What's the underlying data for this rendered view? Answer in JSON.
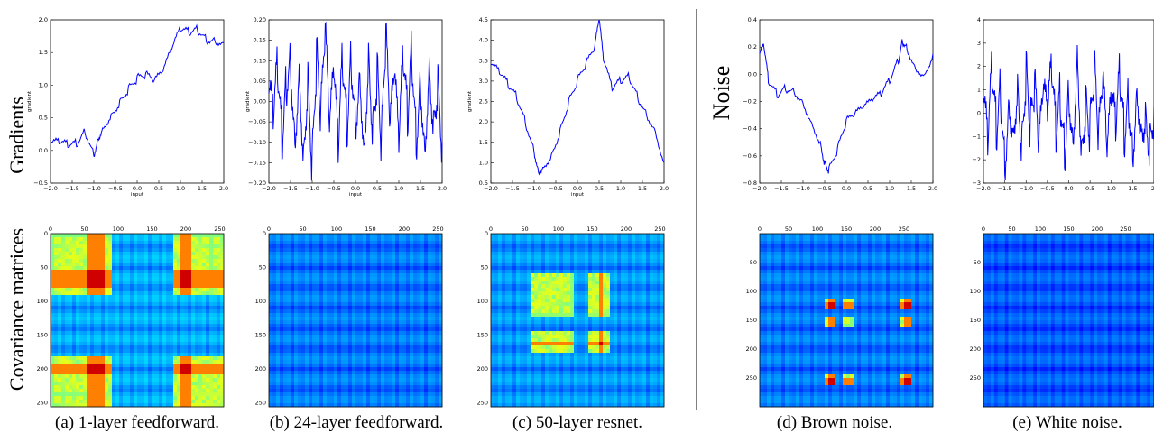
{
  "row_labels": {
    "gradients": "Gradients",
    "covariance": "Covariance matrices",
    "noise": "Noise"
  },
  "captions": [
    "(a) 1-layer feedforward.",
    "(b) 24-layer feedforward.",
    "(c) 50-layer resnet.",
    "(d) Brown noise.",
    "(e) White noise."
  ],
  "chart_data": [
    {
      "type": "line",
      "id": "a-line",
      "xlabel": "input",
      "ylabel": "gradient",
      "xlim": [
        -2.0,
        2.0
      ],
      "ylim": [
        -0.5,
        2.0
      ],
      "xticks": [
        "−2.0",
        "−1.5",
        "−1.0",
        "−0.5",
        "0.0",
        "0.5",
        "1.0",
        "1.5",
        "2.0"
      ],
      "yticks": [
        "−0.5",
        "0.0",
        "0.5",
        "1.0",
        "1.5",
        "2.0"
      ],
      "x": [
        -2.0,
        -1.8,
        -1.6,
        -1.4,
        -1.2,
        -1.0,
        -0.9,
        -0.8,
        -0.6,
        -0.4,
        -0.2,
        0.0,
        0.2,
        0.4,
        0.6,
        0.8,
        1.0,
        1.2,
        1.4,
        1.6,
        1.8,
        2.0
      ],
      "y": [
        0.1,
        0.12,
        0.08,
        0.1,
        0.3,
        -0.05,
        0.2,
        0.35,
        0.55,
        0.75,
        0.95,
        1.1,
        1.15,
        1.05,
        1.2,
        1.55,
        1.85,
        1.8,
        1.85,
        1.7,
        1.7,
        1.65
      ],
      "color": "#0000ff"
    },
    {
      "type": "line",
      "id": "b-line",
      "xlabel": "input",
      "ylabel": "gradient",
      "xlim": [
        -2.0,
        2.0
      ],
      "ylim": [
        -0.2,
        0.2
      ],
      "xticks": [
        "−2.0",
        "−1.5",
        "−1.0",
        "−0.5",
        "0.0",
        "0.5",
        "1.0",
        "1.5",
        "2.0"
      ],
      "yticks": [
        "−0.20",
        "−0.15",
        "−0.10",
        "−0.05",
        "0.00",
        "0.05",
        "0.10",
        "0.15",
        "0.20"
      ],
      "x": [
        -2.0,
        -1.9,
        -1.8,
        -1.7,
        -1.6,
        -1.5,
        -1.4,
        -1.3,
        -1.2,
        -1.1,
        -1.0,
        -0.9,
        -0.8,
        -0.7,
        -0.6,
        -0.5,
        -0.4,
        -0.3,
        -0.2,
        -0.1,
        0.0,
        0.1,
        0.2,
        0.3,
        0.4,
        0.5,
        0.6,
        0.7,
        0.8,
        0.9,
        1.0,
        1.1,
        1.2,
        1.3,
        1.4,
        1.5,
        1.6,
        1.7,
        1.8,
        1.9,
        2.0
      ],
      "y": [
        0.02,
        -0.05,
        0.08,
        -0.1,
        0.05,
        0.12,
        -0.08,
        0.1,
        -0.12,
        0.07,
        -0.15,
        0.11,
        -0.05,
        0.16,
        -0.09,
        0.06,
        -0.13,
        0.1,
        -0.07,
        0.12,
        -0.04,
        0.09,
        -0.1,
        0.13,
        -0.06,
        0.08,
        -0.11,
        0.15,
        -0.08,
        0.05,
        -0.12,
        0.1,
        -0.05,
        0.13,
        -0.09,
        0.07,
        -0.1,
        0.11,
        -0.04,
        0.06,
        -0.1
      ],
      "color": "#0000ff"
    },
    {
      "type": "line",
      "id": "c-line",
      "xlabel": "input",
      "ylabel": "gradient",
      "xlim": [
        -2.0,
        2.0
      ],
      "ylim": [
        0.5,
        4.5
      ],
      "xticks": [
        "−2.0",
        "−1.5",
        "−1.0",
        "−0.5",
        "0.0",
        "0.5",
        "1.0",
        "1.5",
        "2.0"
      ],
      "yticks": [
        "0.5",
        "1.0",
        "1.5",
        "2.0",
        "2.5",
        "3.0",
        "3.5",
        "4.0",
        "4.5"
      ],
      "x": [
        -2.0,
        -1.8,
        -1.6,
        -1.4,
        -1.2,
        -1.0,
        -0.9,
        -0.8,
        -0.6,
        -0.4,
        -0.2,
        0.0,
        0.2,
        0.4,
        0.5,
        0.6,
        0.8,
        1.0,
        1.2,
        1.4,
        1.6,
        1.8,
        2.0
      ],
      "y": [
        3.4,
        3.2,
        2.9,
        2.6,
        2.0,
        1.3,
        0.8,
        0.9,
        1.2,
        1.8,
        2.5,
        3.0,
        3.4,
        3.8,
        4.5,
        3.5,
        2.8,
        3.0,
        3.1,
        2.6,
        2.2,
        1.8,
        1.0
      ],
      "color": "#0000ff"
    },
    {
      "type": "line",
      "id": "d-line",
      "xlim": [
        -2.0,
        2.0
      ],
      "ylim": [
        -0.8,
        0.4
      ],
      "xticks": [
        "−2.0",
        "−1.5",
        "−1.0",
        "−0.5",
        "0.0",
        "0.5",
        "1.0",
        "1.5",
        "2.0"
      ],
      "yticks": [
        "−0.8",
        "−0.6",
        "−0.4",
        "−0.2",
        "0.0",
        "0.2",
        "0.4"
      ],
      "x": [
        -2.0,
        -1.9,
        -1.8,
        -1.6,
        -1.4,
        -1.2,
        -1.0,
        -0.8,
        -0.6,
        -0.5,
        -0.4,
        -0.2,
        0.0,
        0.2,
        0.4,
        0.6,
        0.8,
        1.0,
        1.2,
        1.3,
        1.4,
        1.6,
        1.8,
        2.0
      ],
      "y": [
        0.15,
        0.2,
        -0.05,
        -0.15,
        -0.1,
        -0.12,
        -0.2,
        -0.35,
        -0.5,
        -0.65,
        -0.7,
        -0.55,
        -0.35,
        -0.3,
        -0.25,
        -0.2,
        -0.15,
        -0.05,
        0.1,
        0.25,
        0.2,
        0.05,
        0.0,
        0.15
      ],
      "color": "#0000ff"
    },
    {
      "type": "line",
      "id": "e-line",
      "xlim": [
        -2.0,
        2.0
      ],
      "ylim": [
        -3,
        4
      ],
      "xticks": [
        "−2.0",
        "−1.5",
        "−1.0",
        "−0.5",
        "0.0",
        "0.5",
        "1.0",
        "1.5",
        "2."
      ],
      "yticks": [
        "−3",
        "−2",
        "−1",
        "0",
        "1",
        "2",
        "3",
        "4"
      ],
      "x": [
        -2.0,
        -1.9,
        -1.8,
        -1.7,
        -1.6,
        -1.5,
        -1.4,
        -1.3,
        -1.2,
        -1.1,
        -1.0,
        -0.9,
        -0.8,
        -0.7,
        -0.6,
        -0.5,
        -0.4,
        -0.3,
        -0.2,
        -0.1,
        0.0,
        0.1,
        0.2,
        0.3,
        0.4,
        0.5,
        0.6,
        0.7,
        0.8,
        0.9,
        1.0,
        1.1,
        1.2,
        1.3,
        1.4,
        1.5,
        1.6,
        1.7,
        1.8,
        1.9,
        2.0
      ],
      "y": [
        0.5,
        -1.5,
        1.8,
        -0.8,
        1.2,
        -2.0,
        0.9,
        -0.5,
        1.5,
        -1.2,
        2.0,
        -0.7,
        1.0,
        -1.8,
        0.6,
        -0.3,
        1.7,
        -1.1,
        0.8,
        -1.6,
        1.3,
        -0.9,
        3.0,
        -1.4,
        0.7,
        -0.6,
        1.9,
        -1.3,
        1.1,
        -2.1,
        0.4,
        -0.8,
        1.6,
        -1.0,
        0.9,
        -1.5,
        1.4,
        -0.4,
        0.2,
        -1.2,
        0.3
      ],
      "color": "#0000ff"
    },
    {
      "type": "heatmap",
      "id": "a-cov",
      "size": 256,
      "xticks": [
        "0",
        "50",
        "100",
        "150",
        "200",
        "250"
      ],
      "yticks": [
        "0",
        "50",
        "100",
        "150",
        "200",
        "250"
      ],
      "blocks": [
        [
          0,
          90
        ],
        [
          180,
          256
        ]
      ],
      "hot_bands": [
        [
          50,
          80
        ],
        [
          190,
          205
        ]
      ],
      "base": 0.2
    },
    {
      "type": "heatmap",
      "id": "b-cov",
      "size": 256,
      "xticks": [
        "0",
        "50",
        "100",
        "150",
        "200",
        "250"
      ],
      "yticks": [
        "0",
        "50",
        "100",
        "150",
        "200",
        "250"
      ],
      "blocks": [],
      "hot_bands": [],
      "base": 0.15
    },
    {
      "type": "heatmap",
      "id": "c-cov",
      "size": 256,
      "xticks": [
        "0",
        "50",
        "100",
        "150",
        "200",
        "250"
      ],
      "yticks": [
        "0",
        "50",
        "100",
        "150",
        "200",
        "250"
      ],
      "blocks": [
        [
          55,
          120
        ],
        [
          140,
          175
        ]
      ],
      "hot_bands": [
        [
          155,
          165
        ]
      ],
      "base": 0.18
    },
    {
      "type": "heatmap",
      "id": "d-cov",
      "size": 300,
      "xticks": [
        "0",
        "50",
        "100",
        "150",
        "200",
        "250"
      ],
      "yticks": [
        "50",
        "100",
        "150",
        "200",
        "250"
      ],
      "blocks": [
        [
          110,
          130
        ],
        [
          140,
          160
        ],
        [
          240,
          260
        ]
      ],
      "hot_bands": [
        [
          115,
          128
        ],
        [
          245,
          258
        ]
      ],
      "base": 0.15
    },
    {
      "type": "heatmap",
      "id": "e-cov",
      "size": 300,
      "xticks": [
        "0",
        "50",
        "100",
        "150",
        "200",
        "250"
      ],
      "yticks": [
        "50",
        "100",
        "150",
        "200",
        "250"
      ],
      "blocks": [],
      "hot_bands": [],
      "base": 0.12
    }
  ]
}
